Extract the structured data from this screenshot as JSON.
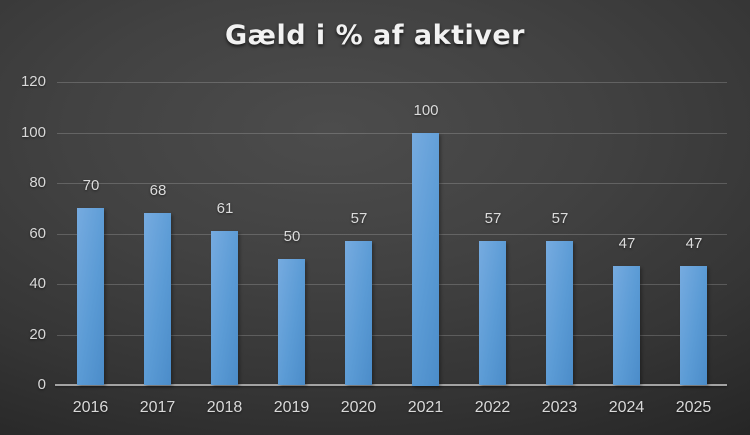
{
  "chart_data": {
    "type": "bar",
    "title": "Gæld i % af aktiver",
    "categories": [
      "2016",
      "2017",
      "2018",
      "2019",
      "2020",
      "2021",
      "2022",
      "2023",
      "2024",
      "2025"
    ],
    "values": [
      70,
      68,
      61,
      50,
      57,
      100,
      57,
      57,
      47,
      47
    ],
    "xlabel": "",
    "ylabel": "",
    "ylim": [
      0,
      120
    ],
    "yticks": [
      0,
      20,
      40,
      60,
      80,
      100,
      120
    ],
    "grid": true,
    "legend": false,
    "colors": {
      "bar_fill": "#5b9bd5",
      "bar_fill_light": "#76abe0",
      "bar_fill_dark": "#4b8cc9",
      "title_text": "#f2f2f2",
      "label_text": "#d9d9d9",
      "gridline": "rgba(255,255,255,0.18)",
      "axis_line": "#a3a3a3",
      "background_center": "#4c4c4c",
      "background_edge": "#151515"
    }
  }
}
